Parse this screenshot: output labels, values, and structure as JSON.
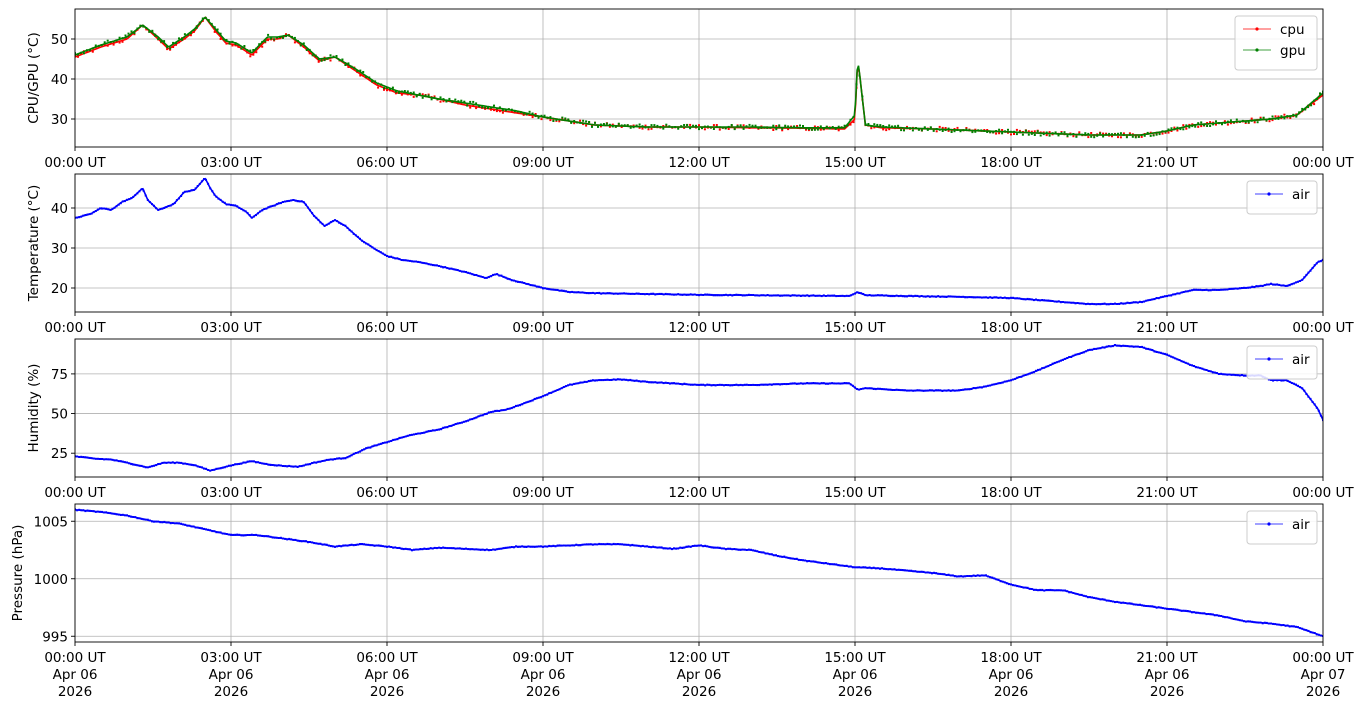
{
  "chart_data": [
    {
      "type": "line",
      "ylabel": "CPU/GPU (°C)",
      "ylim": [
        23,
        57.5
      ],
      "yticks": [
        30,
        40,
        50
      ],
      "xlim": [
        0,
        24
      ],
      "grid": true,
      "legend_position": "top-right",
      "markers": true,
      "series": [
        {
          "name": "cpu",
          "color": "#ff0000",
          "x": [
            0,
            0.5,
            1.0,
            1.3,
            1.6,
            1.8,
            2.1,
            2.3,
            2.5,
            2.7,
            2.9,
            3.1,
            3.4,
            3.7,
            3.9,
            4.1,
            4.4,
            4.7,
            5.0,
            5.4,
            5.8,
            6.2,
            6.6,
            7.0,
            7.5,
            8.0,
            8.5,
            9.0,
            9.5,
            10.0,
            11.0,
            12.0,
            13.0,
            14.0,
            14.8,
            15.0,
            15.05,
            15.1,
            15.2,
            15.5,
            16.5,
            17.5,
            18.5,
            19.5,
            20.5,
            21.0,
            21.5,
            22.0,
            22.5,
            23.0,
            23.5,
            24.0
          ],
          "values": [
            45.5,
            48,
            50,
            53.5,
            50,
            47.5,
            50,
            52,
            55.5,
            52,
            49,
            48.5,
            46,
            50,
            50,
            51,
            48,
            44.5,
            45.5,
            42,
            38.5,
            36.5,
            36,
            35,
            33.5,
            32.5,
            31.5,
            30.5,
            29.5,
            28.5,
            28,
            28,
            27.8,
            27.7,
            27.5,
            30,
            44.5,
            40,
            28.5,
            27.8,
            27.5,
            27,
            26.5,
            26,
            26,
            27,
            28.5,
            29,
            29.5,
            30,
            31,
            36
          ]
        },
        {
          "name": "gpu",
          "color": "#008000",
          "x": [
            0,
            0.5,
            1.0,
            1.3,
            1.6,
            1.8,
            2.1,
            2.3,
            2.5,
            2.7,
            2.9,
            3.1,
            3.4,
            3.7,
            3.9,
            4.1,
            4.4,
            4.7,
            5.0,
            5.4,
            5.8,
            6.2,
            6.6,
            7.0,
            7.5,
            8.0,
            8.5,
            9.0,
            9.5,
            10.0,
            11.0,
            12.0,
            13.0,
            14.0,
            14.8,
            15.0,
            15.05,
            15.1,
            15.2,
            15.5,
            16.5,
            17.5,
            18.5,
            19.5,
            20.5,
            21.0,
            21.5,
            22.0,
            22.5,
            23.0,
            23.5,
            24.0
          ],
          "values": [
            46,
            48.5,
            50.5,
            53.5,
            50.5,
            48,
            50.5,
            52.5,
            55.5,
            52.5,
            49.5,
            49,
            46.5,
            50.5,
            50.5,
            51,
            48.5,
            45,
            45.5,
            42.5,
            39,
            37,
            36,
            35,
            34,
            33,
            32,
            30.5,
            29.5,
            28.5,
            28,
            28,
            28,
            27.8,
            27.8,
            31,
            45,
            40,
            28.5,
            28,
            27.5,
            27,
            26.5,
            26,
            26,
            27,
            28.5,
            29,
            29.5,
            30,
            31,
            36.5
          ]
        }
      ]
    },
    {
      "type": "line",
      "ylabel": "Temperature (°C)",
      "ylim": [
        14,
        48.5
      ],
      "yticks": [
        20,
        30,
        40
      ],
      "xlim": [
        0,
        24
      ],
      "grid": true,
      "legend_position": "top-right",
      "markers": true,
      "series": [
        {
          "name": "air",
          "color": "#0000ff",
          "x": [
            0,
            0.3,
            0.5,
            0.7,
            0.9,
            1.1,
            1.3,
            1.4,
            1.6,
            1.8,
            1.9,
            2.1,
            2.3,
            2.5,
            2.6,
            2.7,
            2.9,
            3.1,
            3.3,
            3.4,
            3.6,
            3.8,
            4.0,
            4.2,
            4.4,
            4.6,
            4.8,
            5.0,
            5.2,
            5.5,
            5.8,
            6.0,
            6.3,
            6.6,
            7.0,
            7.5,
            7.9,
            8.1,
            8.4,
            8.7,
            9.0,
            9.5,
            10.0,
            11.0,
            12.0,
            13.0,
            14.0,
            14.9,
            15.05,
            15.2,
            16.0,
            17.0,
            18.0,
            18.5,
            19.0,
            19.5,
            20.0,
            20.5,
            21.0,
            21.5,
            22.0,
            22.5,
            22.8,
            23.0,
            23.3,
            23.6,
            23.9,
            24.0
          ],
          "values": [
            37.5,
            38.5,
            40,
            39.5,
            41.5,
            42.5,
            45,
            42,
            39.5,
            40.5,
            41,
            44,
            44.5,
            47.5,
            45,
            43,
            41,
            40.5,
            39,
            37.5,
            39.5,
            40.5,
            41.5,
            42,
            41.5,
            38,
            35.5,
            37,
            35.5,
            32,
            29.5,
            28,
            27,
            26.5,
            25.5,
            24,
            22.5,
            23.5,
            22,
            21,
            20,
            19,
            18.7,
            18.5,
            18.3,
            18.2,
            18.1,
            18,
            19,
            18.2,
            18,
            17.8,
            17.5,
            17,
            16.5,
            16,
            16,
            16.5,
            18,
            19.5,
            19.5,
            20,
            20.5,
            21,
            20.5,
            22,
            26.5,
            27
          ]
        }
      ]
    },
    {
      "type": "line",
      "ylabel": "Humidity (%)",
      "ylim": [
        10,
        97
      ],
      "yticks": [
        25,
        50,
        75
      ],
      "xlim": [
        0,
        24
      ],
      "grid": true,
      "legend_position": "top-right",
      "markers": true,
      "series": [
        {
          "name": "air",
          "color": "#0000ff",
          "x": [
            0,
            0.4,
            0.7,
            1.0,
            1.4,
            1.7,
            2.0,
            2.3,
            2.6,
            2.9,
            3.1,
            3.4,
            3.7,
            4.0,
            4.3,
            4.6,
            4.9,
            5.2,
            5.6,
            6.0,
            6.4,
            7.0,
            7.5,
            8.0,
            8.3,
            8.6,
            9.0,
            9.5,
            10.0,
            10.5,
            11.0,
            12.0,
            13.0,
            14.0,
            14.9,
            15.05,
            15.2,
            16.0,
            17.0,
            17.5,
            18.0,
            18.5,
            19.0,
            19.5,
            20.0,
            20.5,
            21.0,
            21.5,
            22.0,
            22.5,
            22.8,
            23.0,
            23.3,
            23.6,
            23.9,
            24.0
          ],
          "values": [
            23,
            21.5,
            21,
            19,
            16,
            19,
            19,
            17.5,
            14,
            16.5,
            18,
            20,
            18,
            17,
            16.5,
            19,
            21,
            22,
            28,
            32,
            36,
            40,
            45,
            51,
            52.5,
            56,
            61,
            68,
            71,
            71.5,
            70,
            68,
            68,
            69,
            69,
            65,
            66,
            64.5,
            64.5,
            67,
            71,
            77,
            84,
            90,
            93,
            92,
            87,
            80,
            75,
            74,
            74,
            71,
            71,
            66,
            53,
            46
          ]
        }
      ]
    },
    {
      "type": "line",
      "ylabel": "Pressure (hPa)",
      "ylim": [
        994.5,
        1006.5
      ],
      "yticks": [
        995,
        1000,
        1005
      ],
      "xlim": [
        0,
        24
      ],
      "grid": true,
      "legend_position": "top-right",
      "markers": true,
      "series": [
        {
          "name": "air",
          "color": "#0000ff",
          "x": [
            0,
            0.5,
            1.0,
            1.5,
            2.0,
            2.5,
            3.0,
            3.5,
            4.0,
            4.5,
            5.0,
            5.5,
            6.0,
            6.5,
            7.0,
            7.5,
            8.0,
            8.5,
            9.0,
            9.5,
            10.0,
            10.5,
            11.0,
            11.5,
            12.0,
            12.5,
            13.0,
            13.5,
            14.0,
            14.5,
            15.0,
            15.5,
            16.0,
            16.5,
            17.0,
            17.5,
            18.0,
            18.5,
            19.0,
            19.5,
            20.0,
            20.5,
            21.0,
            21.5,
            22.0,
            22.5,
            23.0,
            23.5,
            24.0
          ],
          "values": [
            1006,
            1005.8,
            1005.5,
            1005,
            1004.8,
            1004.3,
            1003.8,
            1003.8,
            1003.5,
            1003.2,
            1002.8,
            1003,
            1002.8,
            1002.5,
            1002.7,
            1002.6,
            1002.5,
            1002.8,
            1002.8,
            1002.9,
            1003,
            1003,
            1002.8,
            1002.6,
            1002.9,
            1002.6,
            1002.5,
            1002,
            1001.6,
            1001.3,
            1001,
            1000.9,
            1000.7,
            1000.5,
            1000.2,
            1000.3,
            999.5,
            999,
            999,
            998.4,
            998,
            997.7,
            997.4,
            997.1,
            996.8,
            996.3,
            996.1,
            995.8,
            995
          ]
        }
      ]
    }
  ],
  "x_tick_labels": [
    "00:00 UT",
    "03:00 UT",
    "06:00 UT",
    "09:00 UT",
    "12:00 UT",
    "15:00 UT",
    "18:00 UT",
    "21:00 UT",
    "00:00 UT"
  ],
  "x_tick_dates_line2": [
    "Apr 06",
    "Apr 06",
    "Apr 06",
    "Apr 06",
    "Apr 06",
    "Apr 06",
    "Apr 06",
    "Apr 06",
    "Apr 07"
  ],
  "x_tick_dates_line3": [
    "2026",
    "2026",
    "2026",
    "2026",
    "2026",
    "2026",
    "2026",
    "2026",
    "2026"
  ],
  "style": {
    "grid_color": "#b0b0b0",
    "axis_color": "#000000"
  }
}
